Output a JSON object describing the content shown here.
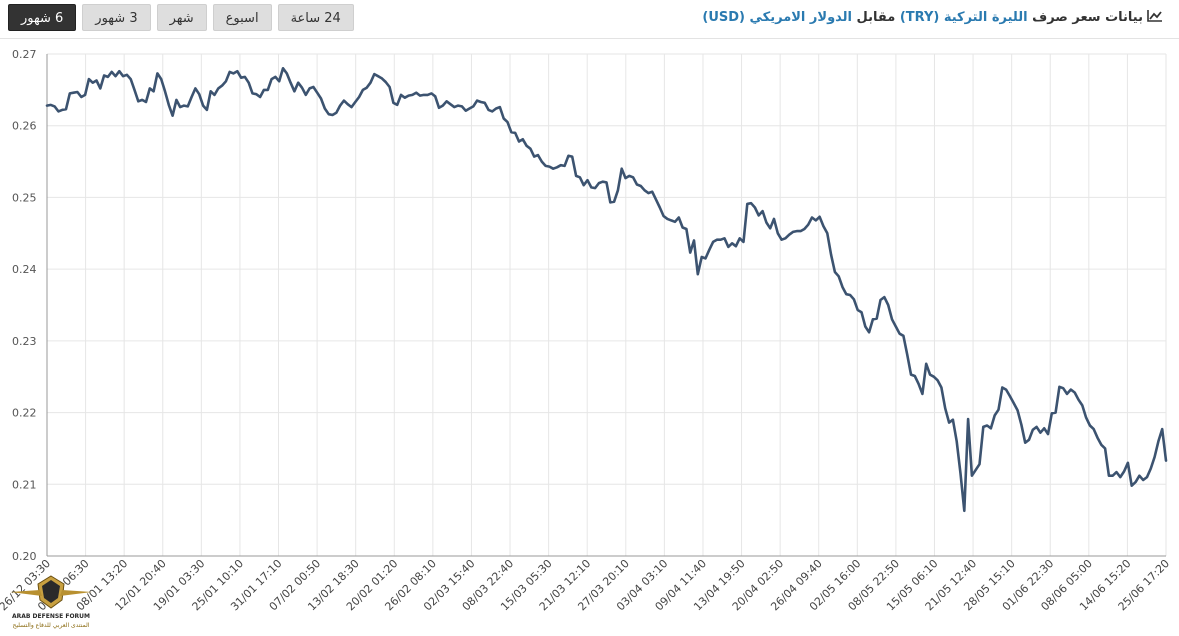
{
  "header": {
    "title_prefix": "بيانات سعر صرف ",
    "base_currency": "الليرة التركية (TRY)",
    "title_middle": " مقابل ",
    "quote_currency": "الدولار الامريكي (USD)",
    "icon": "line-chart-icon"
  },
  "range_buttons": [
    {
      "label": "6 شهور",
      "active": true
    },
    {
      "label": "3 شهور",
      "active": false
    },
    {
      "label": "شهر",
      "active": false
    },
    {
      "label": "اسبوع",
      "active": false
    },
    {
      "label": "24 ساعة",
      "active": false
    }
  ],
  "colors": {
    "line": "#3c5370",
    "grid": "#e6e6e6",
    "link": "#2a7ab0",
    "active_button": "#333333"
  },
  "logo": {
    "line1": "ARAB DEFENSE FORUM",
    "line2": "المنتدى العربي للدفاع والتسليح",
    "icon": "eagle-shield-icon"
  },
  "chart_data": {
    "type": "line",
    "title": "",
    "xlabel": "",
    "ylabel": "",
    "ylim": [
      0.2,
      0.27
    ],
    "yticks": [
      "0.27",
      "0.26",
      "0.25",
      "0.24",
      "0.23",
      "0.22",
      "0.21",
      "0.20"
    ],
    "grid": true,
    "xticks": [
      "26/12 03:30",
      "01/01 06:30",
      "08/01 13:20",
      "12/01 20:40",
      "19/01 03:30",
      "25/01 10:10",
      "31/01 17:10",
      "07/02 00:50",
      "13/02 18:30",
      "20/02 01:20",
      "26/02 08:10",
      "02/03 15:40",
      "08/03 22:40",
      "15/03 05:30",
      "21/03 12:10",
      "27/03 20:10",
      "03/04 03:10",
      "09/04 11:40",
      "13/04 19:50",
      "20/04 02:50",
      "26/04 09:40",
      "02/05 16:00",
      "08/05 22:50",
      "15/05 06:10",
      "21/05 12:40",
      "28/05 15:10",
      "01/06 22:30",
      "08/06 05:00",
      "14/06 15:20",
      "25/06 17:20"
    ],
    "series": [
      {
        "values": [
          0.2628,
          0.2629,
          0.2627,
          0.262,
          0.2622,
          0.2623,
          0.2645,
          0.2646,
          0.2647,
          0.264,
          0.2643,
          0.2665,
          0.266,
          0.2663,
          0.2652,
          0.267,
          0.2668,
          0.2675,
          0.2669,
          0.2676,
          0.2669,
          0.2671,
          0.2665,
          0.265,
          0.2634,
          0.2636,
          0.2633,
          0.2652,
          0.2648,
          0.2673,
          0.2665,
          0.2648,
          0.2629,
          0.2614,
          0.2636,
          0.2626,
          0.2628,
          0.2627,
          0.264,
          0.2652,
          0.2644,
          0.2628,
          0.2622,
          0.2648,
          0.2643,
          0.2652,
          0.2656,
          0.2662,
          0.2675,
          0.2673,
          0.2676,
          0.2667,
          0.2668,
          0.266,
          0.2645,
          0.2644,
          0.264,
          0.265,
          0.265,
          0.2665,
          0.2668,
          0.2662,
          0.268,
          0.2673,
          0.266,
          0.2648,
          0.266,
          0.2653,
          0.2643,
          0.2652,
          0.2654,
          0.2646,
          0.2638,
          0.2624,
          0.2616,
          0.2615,
          0.2618,
          0.2628,
          0.2635,
          0.263,
          0.2626,
          0.2633,
          0.264,
          0.265,
          0.2653,
          0.266,
          0.2672,
          0.2669,
          0.2666,
          0.2661,
          0.2654,
          0.2632,
          0.2629,
          0.2643,
          0.2639,
          0.2642,
          0.2643,
          0.2646,
          0.2642,
          0.2643,
          0.2643,
          0.2645,
          0.2641,
          0.2625,
          0.2628,
          0.2634,
          0.263,
          0.2626,
          0.2628,
          0.2627,
          0.2621,
          0.2624,
          0.2627,
          0.2635,
          0.2633,
          0.2632,
          0.2622,
          0.262,
          0.2624,
          0.2626,
          0.261,
          0.2605,
          0.2591,
          0.259,
          0.2578,
          0.2581,
          0.2572,
          0.2568,
          0.2557,
          0.2559,
          0.255,
          0.2544,
          0.2543,
          0.254,
          0.2542,
          0.2545,
          0.2544,
          0.2558,
          0.2557,
          0.253,
          0.2528,
          0.2517,
          0.2524,
          0.2514,
          0.2513,
          0.252,
          0.2522,
          0.2521,
          0.2493,
          0.2494,
          0.251,
          0.254,
          0.2527,
          0.253,
          0.2528,
          0.2518,
          0.2516,
          0.251,
          0.2506,
          0.2508,
          0.2497,
          0.2486,
          0.2474,
          0.247,
          0.2468,
          0.2466,
          0.2472,
          0.2458,
          0.2456,
          0.2423,
          0.244,
          0.2393,
          0.2417,
          0.2415,
          0.2427,
          0.2438,
          0.2441,
          0.2441,
          0.2443,
          0.2431,
          0.2436,
          0.2432,
          0.2443,
          0.2438,
          0.2491,
          0.2492,
          0.2486,
          0.2475,
          0.2481,
          0.2465,
          0.2457,
          0.247,
          0.245,
          0.2441,
          0.2443,
          0.2448,
          0.2452,
          0.2453,
          0.2453,
          0.2456,
          0.2462,
          0.2472,
          0.2468,
          0.2473,
          0.246,
          0.245,
          0.242,
          0.2396,
          0.239,
          0.2375,
          0.2365,
          0.2364,
          0.2358,
          0.2343,
          0.234,
          0.232,
          0.2312,
          0.233,
          0.2331,
          0.2357,
          0.2361,
          0.235,
          0.233,
          0.232,
          0.231,
          0.2307,
          0.2281,
          0.2253,
          0.2251,
          0.224,
          0.2226,
          0.2268,
          0.2253,
          0.225,
          0.2245,
          0.2235,
          0.2206,
          0.2186,
          0.219,
          0.216,
          0.2115,
          0.2063,
          0.2191,
          0.2112,
          0.212,
          0.2128,
          0.218,
          0.2182,
          0.2178,
          0.2196,
          0.2204,
          0.2235,
          0.2232,
          0.2223,
          0.2213,
          0.2203,
          0.2183,
          0.2158,
          0.2162,
          0.2176,
          0.218,
          0.2172,
          0.2178,
          0.217,
          0.2199,
          0.22,
          0.2236,
          0.2234,
          0.2226,
          0.2232,
          0.2228,
          0.2218,
          0.221,
          0.2193,
          0.2182,
          0.2177,
          0.2165,
          0.2155,
          0.215,
          0.2112,
          0.2112,
          0.2117,
          0.211,
          0.2118,
          0.213,
          0.2098,
          0.2103,
          0.2112,
          0.2106,
          0.211,
          0.2122,
          0.2138,
          0.216,
          0.2177,
          0.2133
        ]
      }
    ]
  }
}
